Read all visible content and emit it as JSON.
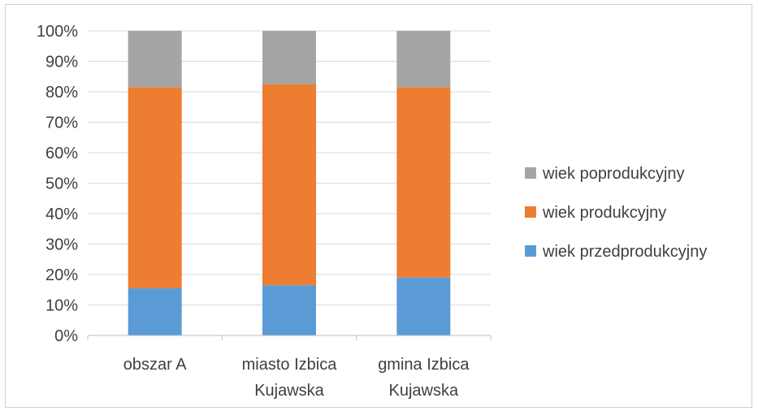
{
  "chart_data": {
    "type": "bar",
    "stacked": "percent",
    "categories": [
      [
        "obszar A"
      ],
      [
        "miasto Izbica",
        "Kujawska"
      ],
      [
        "gmina Izbica",
        "Kujawska"
      ]
    ],
    "series": [
      {
        "name": "wiek przedprodukcyjny",
        "color": "#5b9bd5",
        "values": [
          15.5,
          16.5,
          19.0
        ]
      },
      {
        "name": "wiek produkcyjny",
        "color": "#ed7d31",
        "values": [
          66.0,
          66.0,
          62.5
        ]
      },
      {
        "name": "wiek poprodukcyjny",
        "color": "#a5a5a5",
        "values": [
          18.5,
          17.5,
          18.5
        ]
      }
    ],
    "y_ticks": [
      "0%",
      "10%",
      "20%",
      "30%",
      "40%",
      "50%",
      "60%",
      "70%",
      "80%",
      "90%",
      "100%"
    ],
    "ylim": [
      0,
      100
    ],
    "grid": true,
    "legend_position": "right"
  }
}
